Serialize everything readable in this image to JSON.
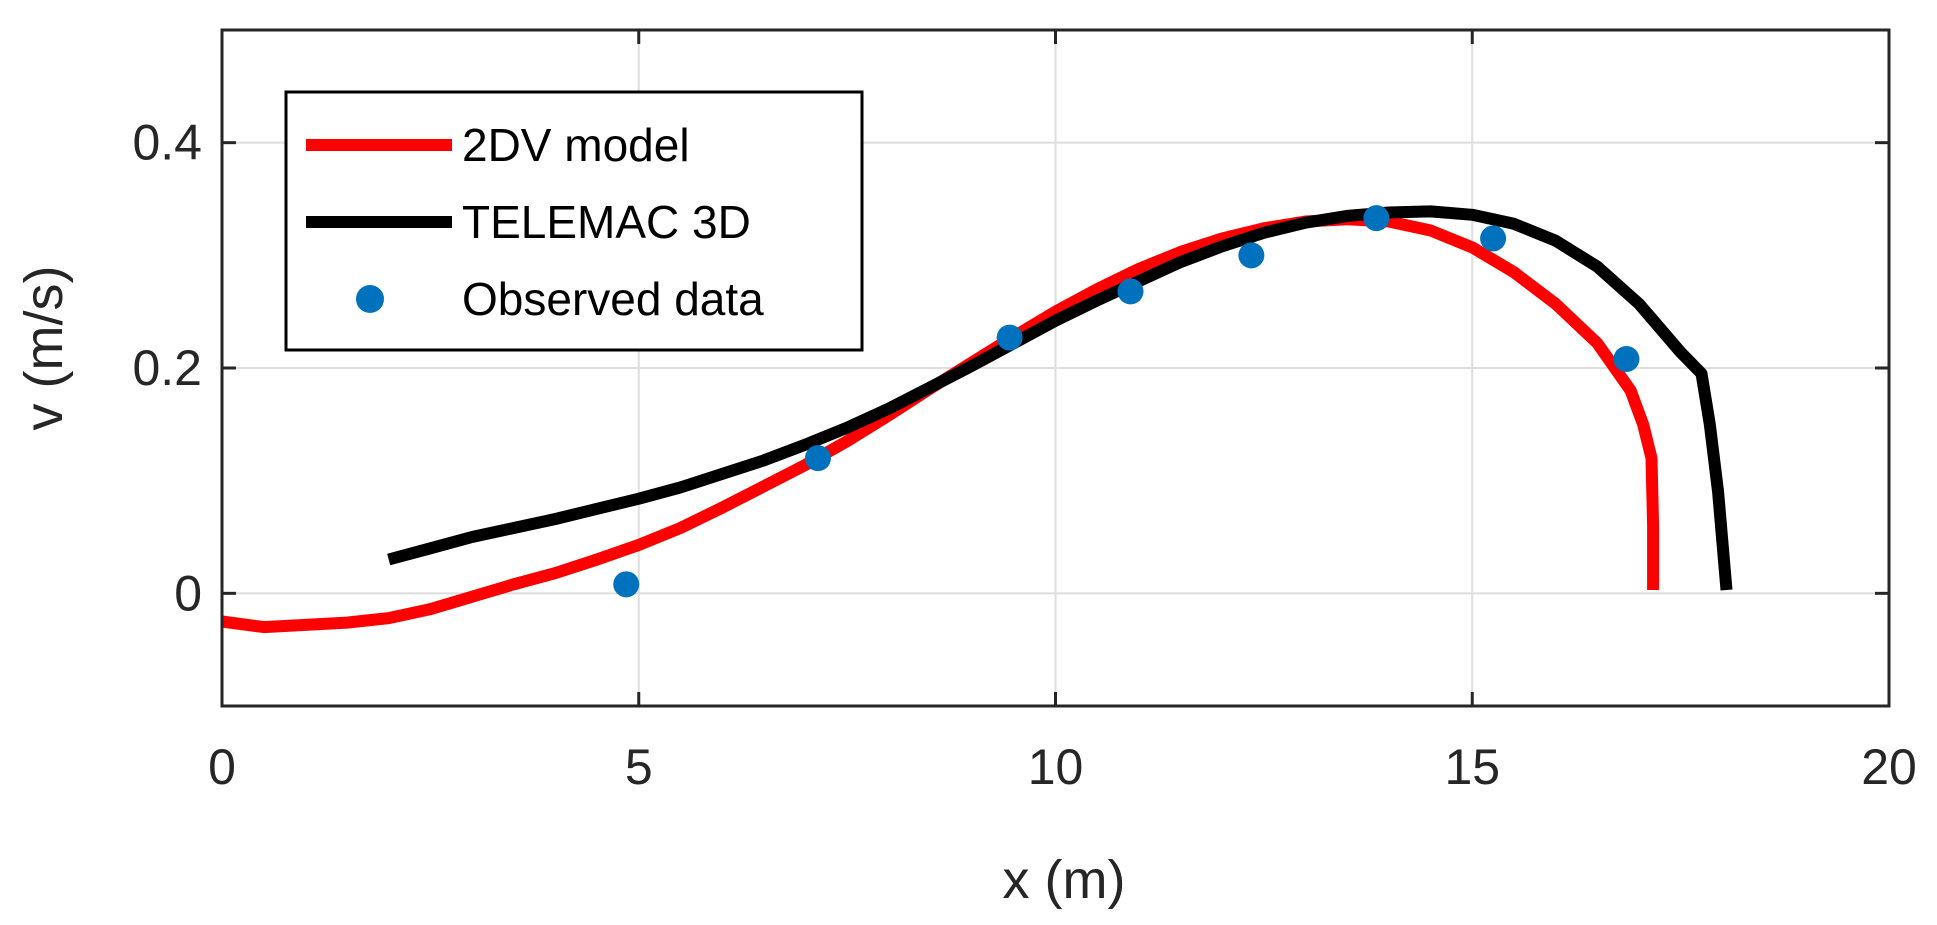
{
  "chart_data": {
    "type": "line",
    "title": "",
    "xlabel": "x (m)",
    "ylabel": "v (m/s)",
    "xlim": [
      0,
      20
    ],
    "ylim": [
      -0.1,
      0.5
    ],
    "xticks": [
      0,
      5,
      10,
      15,
      20
    ],
    "xtick_labels": [
      "0",
      "5",
      "10",
      "15",
      "20"
    ],
    "yticks": [
      0,
      0.2,
      0.4
    ],
    "ytick_labels": [
      "0",
      "0.2",
      "0.4"
    ],
    "grid": true,
    "legend_position": "top-left",
    "series": [
      {
        "name": "2DV model",
        "style": "line",
        "color": "#ff0000",
        "x": [
          0,
          0.5,
          1,
          1.5,
          2,
          2.5,
          3,
          3.5,
          4,
          4.5,
          5,
          5.5,
          6,
          6.5,
          7,
          7.5,
          8,
          8.5,
          9,
          9.5,
          10,
          10.5,
          11,
          11.5,
          12,
          12.5,
          13,
          13.5,
          14,
          14.5,
          15,
          15.5,
          16,
          16.5,
          16.9,
          17.05,
          17.15,
          17.17,
          17.17
        ],
        "y": [
          -0.025,
          -0.03,
          -0.028,
          -0.026,
          -0.022,
          -0.014,
          -0.003,
          0.008,
          0.018,
          0.03,
          0.043,
          0.058,
          0.076,
          0.095,
          0.114,
          0.135,
          0.158,
          0.182,
          0.205,
          0.228,
          0.25,
          0.27,
          0.288,
          0.303,
          0.315,
          0.324,
          0.33,
          0.332,
          0.33,
          0.322,
          0.307,
          0.285,
          0.257,
          0.222,
          0.18,
          0.15,
          0.12,
          0.06,
          0.003
        ]
      },
      {
        "name": "TELEMAC 3D",
        "style": "line",
        "color": "#000000",
        "x": [
          2,
          2.5,
          3,
          3.5,
          4,
          4.5,
          5,
          5.5,
          6,
          6.5,
          7,
          7.5,
          8,
          8.5,
          9,
          9.5,
          10,
          10.5,
          11,
          11.5,
          12,
          12.5,
          13,
          13.5,
          14,
          14.5,
          15,
          15.5,
          16,
          16.5,
          17,
          17.5,
          17.75,
          17.85,
          17.95,
          18.05
        ],
        "y": [
          0.03,
          0.04,
          0.05,
          0.058,
          0.066,
          0.075,
          0.084,
          0.094,
          0.106,
          0.118,
          0.132,
          0.147,
          0.164,
          0.183,
          0.202,
          0.222,
          0.242,
          0.26,
          0.277,
          0.294,
          0.308,
          0.32,
          0.329,
          0.335,
          0.338,
          0.339,
          0.336,
          0.328,
          0.313,
          0.29,
          0.257,
          0.214,
          0.195,
          0.15,
          0.09,
          0.003
        ]
      },
      {
        "name": "Observed data",
        "style": "markers",
        "color": "#0072bd",
        "x": [
          4.85,
          7.15,
          9.45,
          10.9,
          12.35,
          13.85,
          15.25,
          16.85
        ],
        "y": [
          0.008,
          0.12,
          0.227,
          0.268,
          0.3,
          0.333,
          0.315,
          0.208
        ]
      }
    ]
  }
}
